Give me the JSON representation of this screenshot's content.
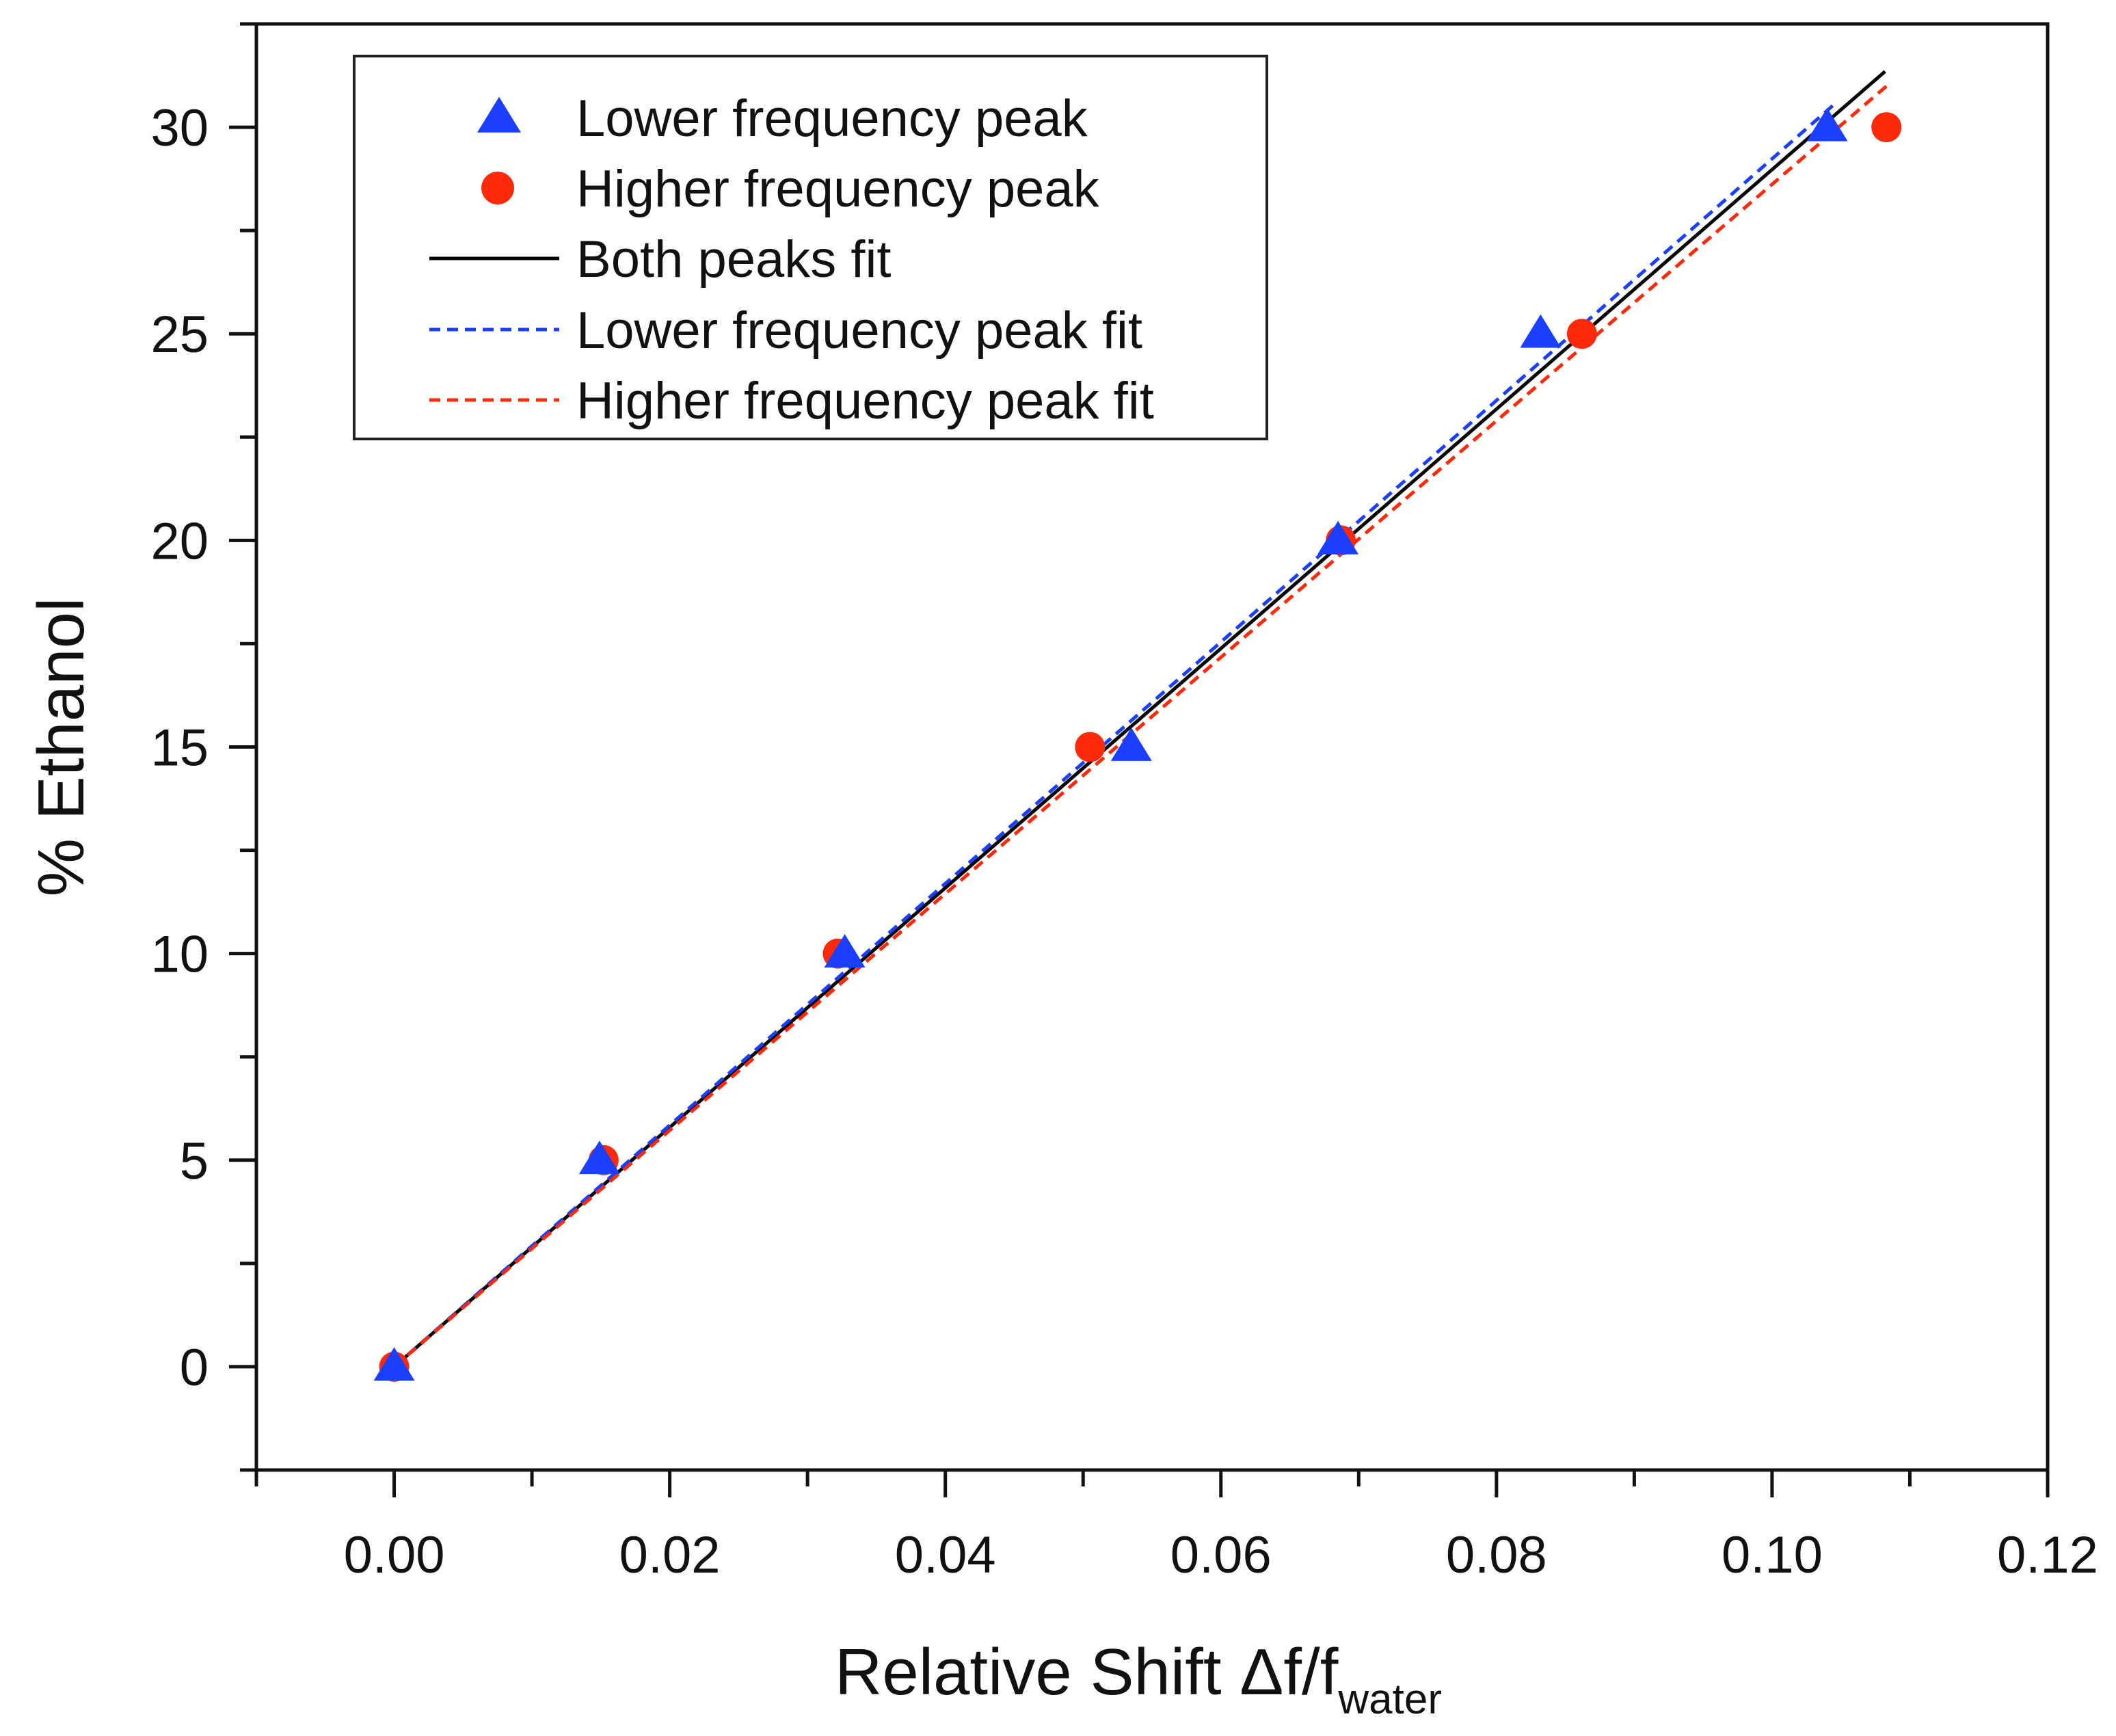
{
  "chart_data": {
    "type": "scatter",
    "title": "",
    "xlabel_main": "Relative Shift Δf/f",
    "xlabel_sub": "water",
    "ylabel": "% Ethanol",
    "xlim": [
      -0.01,
      0.12
    ],
    "ylim": [
      -2.5,
      32.5
    ],
    "x_ticks": [
      0.0,
      0.02,
      0.04,
      0.06,
      0.08,
      0.1,
      0.12
    ],
    "x_tick_labels": [
      "0.00",
      "0.02",
      "0.04",
      "0.06",
      "0.08",
      "0.10",
      "0.12"
    ],
    "x_minor_ticks": [
      -0.01,
      0.01,
      0.03,
      0.05,
      0.07,
      0.09,
      0.11
    ],
    "y_ticks": [
      0,
      5,
      10,
      15,
      20,
      25,
      30
    ],
    "y_tick_labels": [
      "0",
      "5",
      "10",
      "15",
      "20",
      "25",
      "30"
    ],
    "y_minor_ticks": [
      -2.5,
      2.5,
      7.5,
      12.5,
      17.5,
      22.5,
      27.5,
      32.5
    ],
    "grid": false,
    "legend_position": "top-left",
    "scatter_series": [
      {
        "name": "Higher frequency peak",
        "marker": "circle",
        "color": "#ff2a0a",
        "x": [
          0.0,
          0.0152,
          0.0322,
          0.0505,
          0.0687,
          0.0862,
          0.1083
        ],
        "y": [
          0,
          5,
          10,
          15,
          20,
          25,
          30
        ]
      },
      {
        "name": "Lower frequency peak",
        "marker": "triangle",
        "color": "#1a3fff",
        "x": [
          0.0,
          0.0149,
          0.0327,
          0.0535,
          0.0685,
          0.0832,
          0.104
        ],
        "y": [
          0,
          5,
          10,
          15,
          20,
          25,
          30
        ]
      }
    ],
    "fit_series": [
      {
        "name": "Both peaks fit",
        "style": "solid",
        "color": "#000000",
        "x": [
          0.0,
          0.1082
        ],
        "y": [
          0.0,
          31.35
        ]
      },
      {
        "name": "Lower frequency peak fit",
        "style": "dashed",
        "color": "#1a3fff",
        "x": [
          0.0,
          0.1045
        ],
        "y": [
          0.0,
          30.55
        ]
      },
      {
        "name": "Higher frequency peak fit",
        "style": "dashed",
        "color": "#ff2a0a",
        "x": [
          0.0,
          0.1085
        ],
        "y": [
          0.0,
          31.05
        ]
      }
    ],
    "legend": [
      {
        "label": "Lower frequency peak",
        "kind": "triangle",
        "color": "#1a3fff"
      },
      {
        "label": "Higher frequency peak",
        "kind": "circle",
        "color": "#ff2a0a"
      },
      {
        "label": "Both peaks fit",
        "kind": "solid",
        "color": "#000000"
      },
      {
        "label": "Lower frequency peak fit",
        "kind": "dashed",
        "color": "#1a3fff"
      },
      {
        "label": "Higher frequency peak fit",
        "kind": "dashed",
        "color": "#ff2a0a"
      }
    ]
  }
}
